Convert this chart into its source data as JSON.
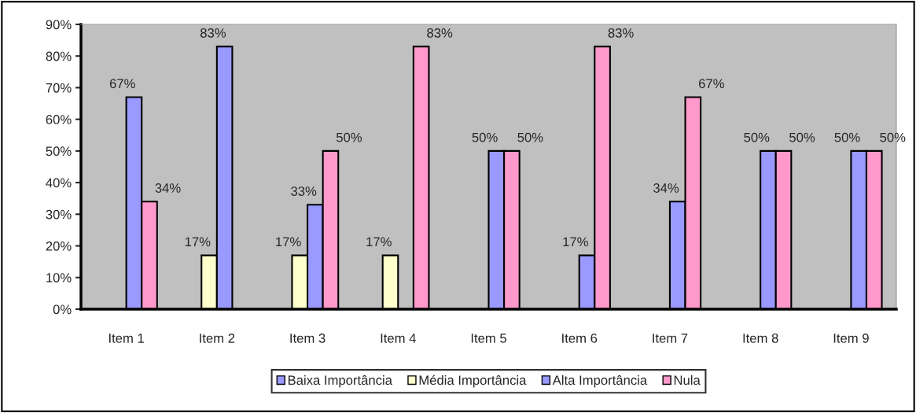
{
  "chart_data": {
    "type": "bar",
    "categories": [
      "Item 1",
      "Item 2",
      "Item 3",
      "Item 4",
      "Item 5",
      "Item 6",
      "Item 7",
      "Item 8",
      "Item 9"
    ],
    "series": [
      {
        "name": "Baixa Importância",
        "color": "#9999ff",
        "values": [
          null,
          null,
          null,
          null,
          null,
          null,
          null,
          null,
          null
        ]
      },
      {
        "name": "Média Importância",
        "color": "#ffffcc",
        "values": [
          null,
          17,
          17,
          17,
          null,
          null,
          null,
          null,
          null
        ],
        "value_labels": [
          null,
          "17%",
          "17%",
          "17%",
          null,
          null,
          null,
          null,
          null
        ]
      },
      {
        "name": "Alta Importância",
        "color": "#9999ff",
        "values": [
          67,
          83,
          33,
          null,
          50,
          17,
          34,
          50,
          50
        ],
        "value_labels": [
          "67%",
          "83%",
          "33%",
          null,
          "50%",
          "17%",
          "34%",
          "50%",
          "50%"
        ]
      },
      {
        "name": "Nula",
        "color": "#ff99cc",
        "values": [
          34,
          null,
          50,
          83,
          50,
          83,
          67,
          50,
          50
        ],
        "value_labels": [
          "34%",
          null,
          "50%",
          "83%",
          "50%",
          "83%",
          "67%",
          "50%",
          "50%"
        ]
      }
    ],
    "ylim": [
      0,
      90
    ],
    "yticks": [
      {
        "value": 0,
        "label": "0%"
      },
      {
        "value": 10,
        "label": "10%"
      },
      {
        "value": 20,
        "label": "20%"
      },
      {
        "value": 30,
        "label": "30%"
      },
      {
        "value": 40,
        "label": "40%"
      },
      {
        "value": 50,
        "label": "50%"
      },
      {
        "value": 60,
        "label": "60%"
      },
      {
        "value": 70,
        "label": "70%"
      },
      {
        "value": 80,
        "label": "80%"
      },
      {
        "value": 90,
        "label": "90%"
      }
    ],
    "grid": false,
    "legend": "bottom"
  }
}
